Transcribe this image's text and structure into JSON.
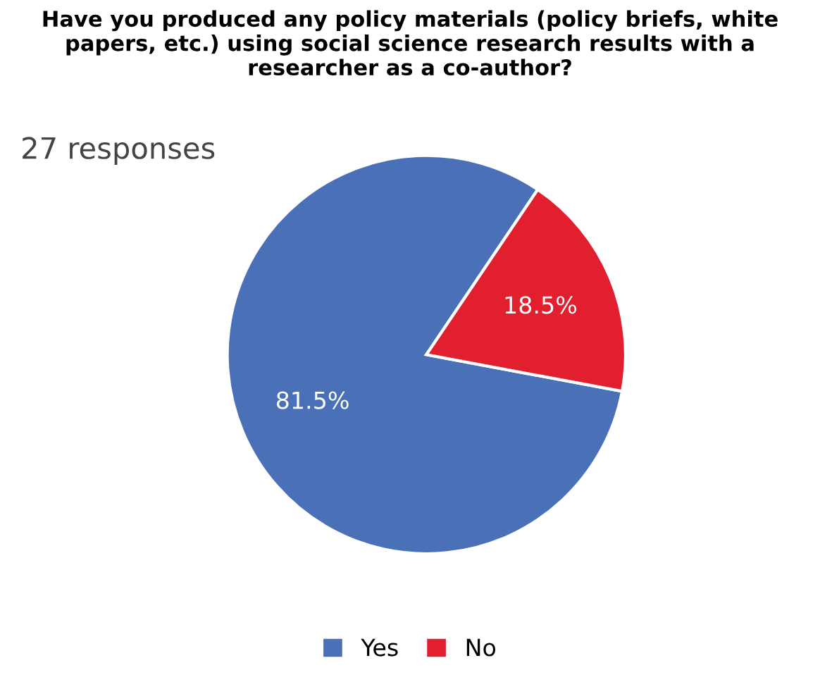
{
  "chart_data": {
    "type": "pie",
    "title": "Have you produced any policy materials (policy briefs, white papers, etc.) using social science research results with a researcher as a co-author?",
    "subtitle": "27 responses",
    "categories": [
      "Yes",
      "No"
    ],
    "values": [
      81.5,
      18.5
    ],
    "colors": [
      "#4a71b8",
      "#e11f2f"
    ],
    "value_labels": [
      "81.5%",
      "18.5%"
    ],
    "legend": "bottom"
  }
}
